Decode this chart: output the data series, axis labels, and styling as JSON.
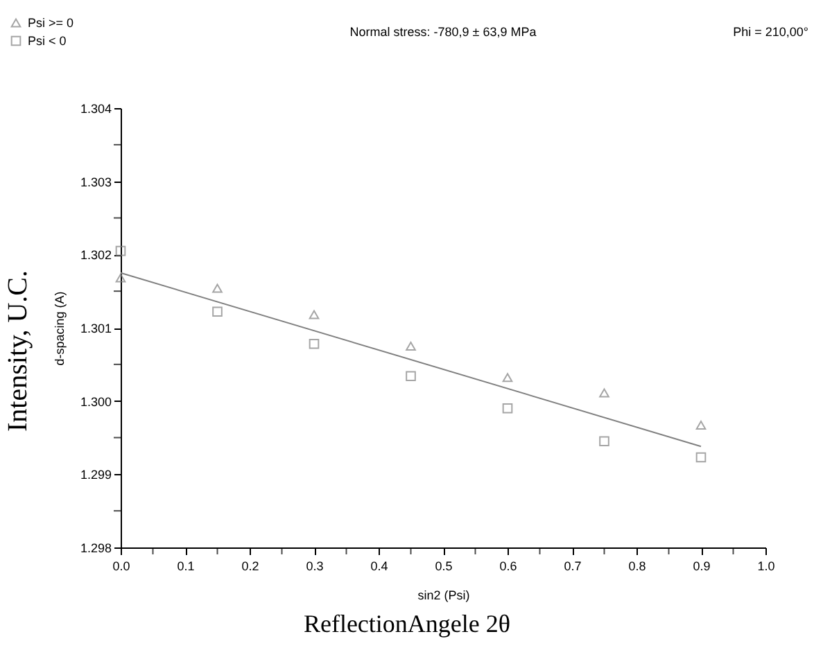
{
  "chart_data": {
    "type": "scatter",
    "title": "Normal stress: -780,9 ± 63,9 MPa",
    "xlabel": "sin2 (Psi)",
    "ylabel": "d-spacing (A)",
    "annotations": [
      "Phi = 210,00°",
      "Intensity, U.C.",
      "ReflectionAngele 2θ"
    ],
    "x": [
      0,
      0.15,
      0.3,
      0.45,
      0.6,
      0.75,
      0.9
    ],
    "series": [
      {
        "name": "Psi >= 0",
        "marker": "triangle",
        "color": "#808080",
        "values": [
          1.30168,
          1.30154,
          1.30118,
          1.30075,
          1.30032,
          1.30011,
          1.29967
        ]
      },
      {
        "name": "Psi <  0",
        "marker": "square",
        "color": "#808080",
        "values": [
          1.30205,
          1.30122,
          1.30078,
          1.30034,
          1.2999,
          1.29945,
          1.29923
        ]
      },
      {
        "type": "line",
        "color": "#808080",
        "x": [
          0,
          0.9
        ],
        "values": [
          1.30175,
          1.29938
        ]
      }
    ],
    "xlim": [
      0,
      1
    ],
    "ylim": [
      1.298,
      1.304
    ],
    "xticks": [
      {
        "value": 0,
        "label": "0.0"
      },
      {
        "value": 0.05,
        "label": null
      },
      0.1,
      {
        "value": 0.15,
        "label": null
      },
      0.2,
      {
        "value": 0.25,
        "label": null
      },
      0.3,
      {
        "value": 0.35,
        "label": null
      },
      0.4,
      {
        "value": 0.45,
        "label": null
      },
      0.5,
      {
        "value": 0.55,
        "label": null
      },
      0.6,
      {
        "value": 0.65,
        "label": null
      },
      0.7,
      {
        "value": 0.75,
        "label": null
      },
      0.8,
      {
        "value": 0.85,
        "label": null
      },
      0.9,
      {
        "value": 0.95,
        "label": null
      },
      {
        "value": 1,
        "label": "1.0"
      }
    ],
    "yticks": [
      {
        "value": 1.298,
        "label": "1.298"
      },
      {
        "value": 1.2985,
        "label": null
      },
      {
        "value": 1.299,
        "label": "1.299"
      },
      {
        "value": 1.2995,
        "label": null
      },
      {
        "value": 1.3,
        "label": "1.300"
      },
      {
        "value": 1.3005,
        "label": null
      },
      {
        "value": 1.301,
        "label": "1.301"
      },
      {
        "value": 1.3015,
        "label": null
      },
      {
        "value": 1.302,
        "label": "1.302"
      },
      {
        "value": 1.3025,
        "label": null
      },
      {
        "value": 1.303,
        "label": "1.303"
      },
      {
        "value": 1.3035,
        "label": null
      },
      {
        "value": 1.304,
        "label": "1.304"
      }
    ],
    "legend": "top left",
    "grid": false
  }
}
